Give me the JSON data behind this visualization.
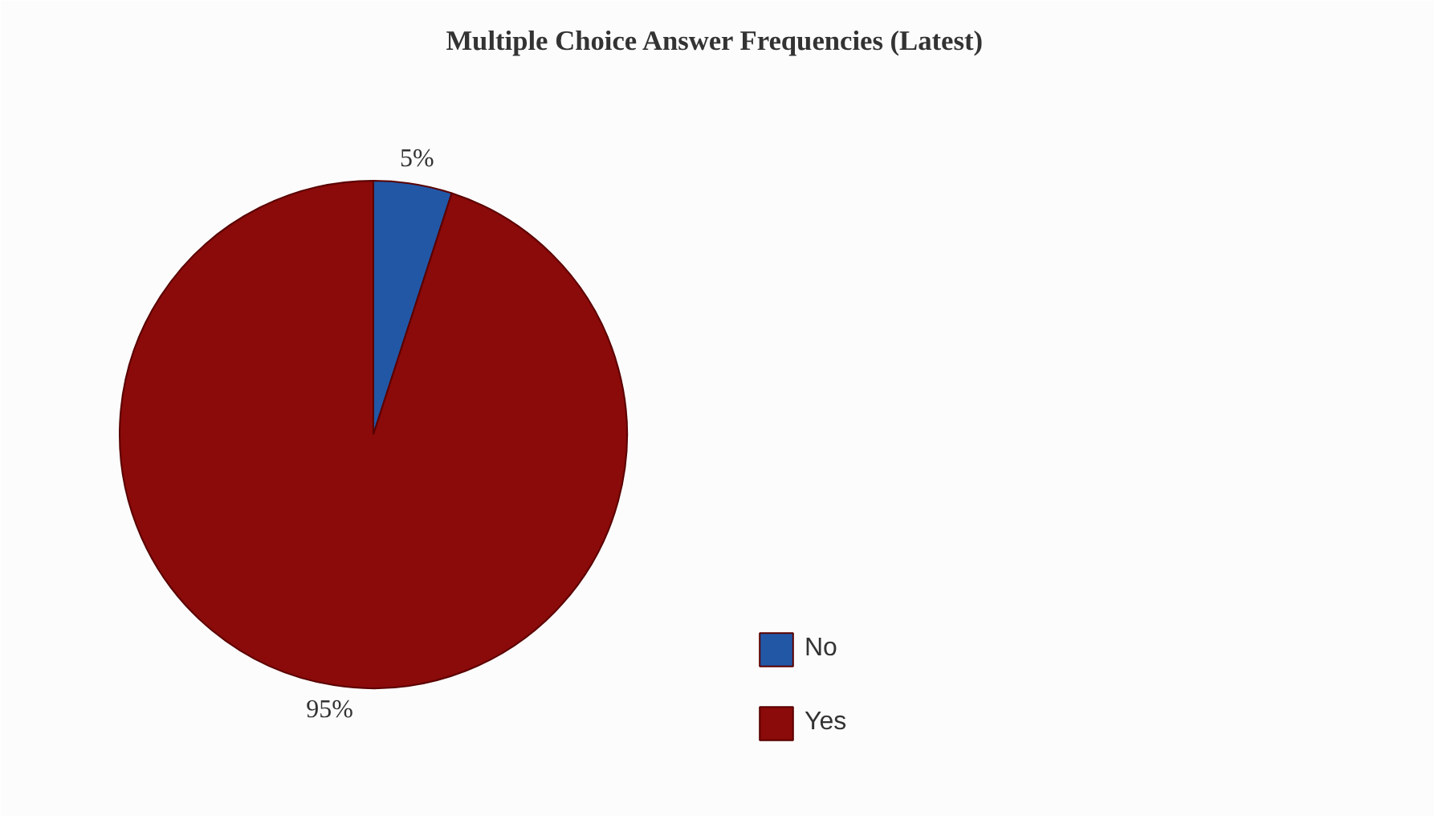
{
  "chart_data": {
    "type": "pie",
    "title": "Multiple Choice Answer Frequencies (Latest)",
    "categories": [
      "No",
      "Yes"
    ],
    "values": [
      5,
      95
    ],
    "colors": [
      "#2257a6",
      "#8b0a0a"
    ],
    "value_labels": [
      "5%",
      "95%"
    ],
    "legend": "bottom"
  }
}
